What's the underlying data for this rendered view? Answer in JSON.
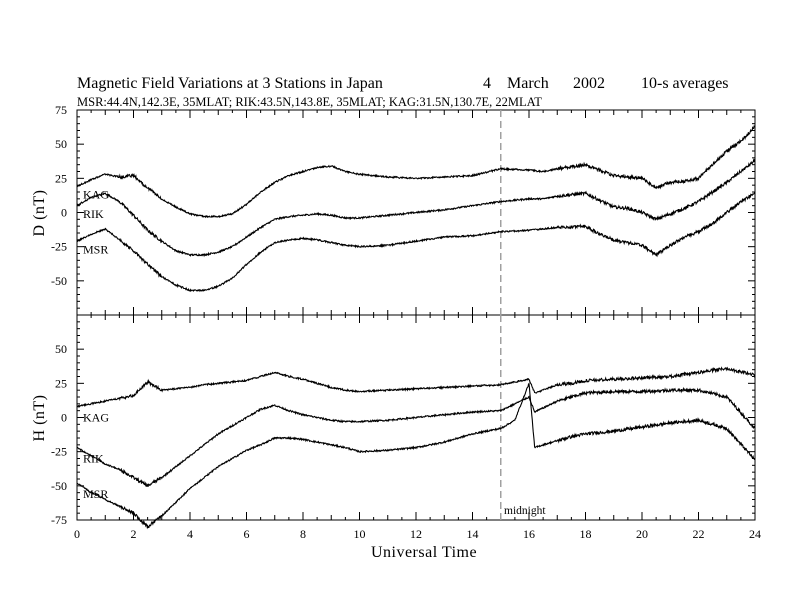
{
  "title": {
    "main": "Magnetic Field Variations at 3 Stations in Japan",
    "day": "4",
    "month": "March",
    "year": "2002",
    "averaging": "10-s averages",
    "stations_line": "MSR:44.4N,142.3E, 35MLAT;   RIK:43.5N,143.8E, 35MLAT;   KAG:31.5N,130.7E, 22MLAT"
  },
  "colors": {
    "traces": "#000000",
    "midnight_line": "#a0a0a0",
    "frame": "#000000"
  },
  "chart_data": [
    {
      "type": "line",
      "panel": "D",
      "ylabel": "D (nT)",
      "ylim": [
        -75,
        75
      ],
      "yticks": [
        75,
        50,
        25,
        0,
        -25,
        -50
      ],
      "xlim": [
        0,
        24
      ],
      "grid": false,
      "series": [
        {
          "name": "KAG",
          "x": [
            0,
            0.5,
            1,
            1.5,
            2,
            2.5,
            3,
            3.5,
            4,
            4.5,
            5,
            5.5,
            6,
            6.5,
            7,
            7.5,
            8,
            8.5,
            9,
            9.5,
            10,
            11,
            12,
            13,
            14,
            15,
            16,
            16.5,
            17,
            18,
            18.5,
            19,
            19.5,
            20,
            20.5,
            21,
            21.5,
            22,
            22.5,
            23,
            23.5,
            24
          ],
          "y": [
            19,
            24,
            28,
            26,
            27,
            18,
            10,
            4,
            -1,
            -3,
            -3,
            -1,
            6,
            15,
            22,
            27,
            30,
            33,
            34,
            30,
            28,
            26,
            25,
            26,
            27,
            32,
            31,
            30,
            32,
            35,
            31,
            27,
            26,
            25,
            18,
            22,
            23,
            25,
            35,
            45,
            52,
            63
          ]
        },
        {
          "name": "RIK",
          "x": [
            0,
            0.5,
            1,
            1.5,
            2,
            2.5,
            3,
            3.5,
            4,
            4.5,
            5,
            5.5,
            6,
            6.5,
            7,
            7.5,
            8,
            8.5,
            9,
            9.5,
            10,
            11,
            12,
            13,
            14,
            15,
            16,
            16.5,
            17,
            18,
            18.5,
            19,
            19.5,
            20,
            20.5,
            21,
            21.5,
            22,
            22.5,
            23,
            23.5,
            24
          ],
          "y": [
            5,
            11,
            14,
            8,
            -2,
            -13,
            -21,
            -28,
            -31,
            -31,
            -29,
            -25,
            -18,
            -11,
            -5,
            -3,
            -2,
            -1,
            -2,
            -4,
            -4,
            -2,
            0,
            2,
            5,
            8,
            10,
            10,
            12,
            14,
            9,
            4,
            3,
            0,
            -5,
            -1,
            3,
            8,
            15,
            22,
            30,
            38
          ]
        },
        {
          "name": "MSR",
          "x": [
            0,
            0.5,
            1,
            1.5,
            2,
            2.5,
            3,
            3.5,
            4,
            4.5,
            5,
            5.5,
            6,
            6.5,
            7,
            7.5,
            8,
            8.5,
            9,
            9.5,
            10,
            11,
            12,
            13,
            14,
            15,
            16,
            16.5,
            17,
            18,
            18.5,
            19,
            19.5,
            20,
            20.5,
            21,
            21.5,
            22,
            22.5,
            23,
            23.5,
            24
          ],
          "y": [
            -21,
            -16,
            -12,
            -20,
            -28,
            -38,
            -47,
            -53,
            -57,
            -57,
            -54,
            -48,
            -38,
            -29,
            -22,
            -20,
            -19,
            -20,
            -22,
            -24,
            -25,
            -24,
            -21,
            -18,
            -17,
            -14,
            -13,
            -12,
            -11,
            -10,
            -16,
            -20,
            -22,
            -24,
            -31,
            -24,
            -18,
            -14,
            -8,
            0,
            8,
            14
          ]
        }
      ]
    },
    {
      "type": "line",
      "panel": "H",
      "ylabel": "H (nT)",
      "ylim": [
        -75,
        75
      ],
      "yticks": [
        50,
        25,
        0,
        -25,
        -50,
        -75
      ],
      "xlim": [
        0,
        24
      ],
      "xticks": [
        0,
        2,
        4,
        6,
        8,
        10,
        12,
        14,
        16,
        18,
        20,
        22,
        24
      ],
      "xlabel": "Universal Time",
      "grid": false,
      "series": [
        {
          "name": "KAG",
          "x": [
            0,
            0.5,
            1,
            1.5,
            2,
            2.5,
            3,
            3.5,
            4,
            4.5,
            5,
            5.5,
            6,
            6.5,
            7,
            7.5,
            8,
            8.5,
            9,
            9.5,
            10,
            11,
            12,
            13,
            14,
            15,
            15.5,
            16,
            16.2,
            16.5,
            17,
            17.5,
            18,
            19,
            20,
            21,
            22,
            23,
            24
          ],
          "y": [
            8,
            10,
            12,
            14,
            16,
            26,
            20,
            21,
            22,
            24,
            25,
            26,
            27,
            30,
            33,
            30,
            28,
            25,
            22,
            20,
            19,
            20,
            21,
            22,
            23,
            24,
            26,
            28,
            18,
            20,
            24,
            25,
            27,
            28,
            29,
            30,
            33,
            36,
            31
          ]
        },
        {
          "name": "RIK",
          "x": [
            0,
            0.5,
            1,
            1.5,
            2,
            2.5,
            3,
            3.5,
            4,
            4.5,
            5,
            5.5,
            6,
            6.5,
            7,
            7.5,
            8,
            8.5,
            9,
            9.5,
            10,
            11,
            12,
            13,
            14,
            15,
            15.5,
            16,
            16.2,
            16.5,
            17,
            17.5,
            18,
            19,
            20,
            21,
            22,
            23,
            24
          ],
          "y": [
            -22,
            -28,
            -34,
            -38,
            -44,
            -50,
            -44,
            -36,
            -28,
            -20,
            -12,
            -6,
            0,
            6,
            9,
            5,
            2,
            0,
            -2,
            -3,
            -3,
            -2,
            0,
            2,
            4,
            5,
            10,
            15,
            4,
            7,
            12,
            15,
            18,
            19,
            19,
            20,
            20,
            15,
            -8
          ]
        },
        {
          "name": "MSR",
          "x": [
            0,
            0.5,
            1,
            1.5,
            2,
            2.5,
            3,
            3.5,
            4,
            4.5,
            5,
            5.5,
            6,
            6.5,
            7,
            7.5,
            8,
            8.5,
            9,
            9.5,
            10,
            11,
            12,
            13,
            14,
            15,
            15.5,
            16,
            16.2,
            16.5,
            17,
            17.5,
            18,
            19,
            20,
            21,
            22,
            23,
            24
          ],
          "y": [
            -48,
            -55,
            -60,
            -65,
            -70,
            -80,
            -72,
            -62,
            -52,
            -44,
            -36,
            -30,
            -24,
            -20,
            -15,
            -15,
            -16,
            -18,
            -20,
            -22,
            -25,
            -24,
            -22,
            -18,
            -12,
            -8,
            -2,
            25,
            -22,
            -20,
            -17,
            -14,
            -12,
            -10,
            -7,
            -4,
            -2,
            -8,
            -31
          ]
        }
      ]
    }
  ],
  "midnight": {
    "x": 15,
    "label": "midnight"
  }
}
